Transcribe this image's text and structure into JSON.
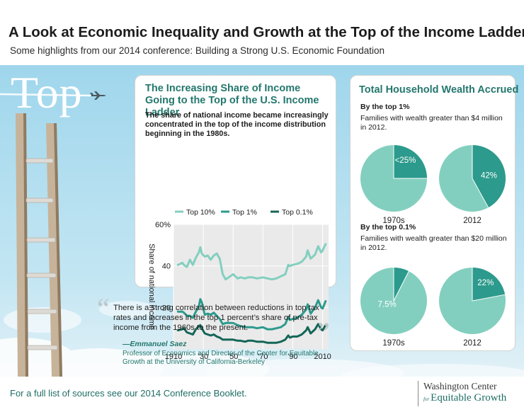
{
  "header": {
    "title": "A Look at Economic Inequality and Growth at the Top of the Income Ladder",
    "subtitle": "Some highlights from our 2014 conference: Building a Strong U.S. Economic Foundation"
  },
  "hero": {
    "word": "Top"
  },
  "colors": {
    "top10": "#83cfbf",
    "top1": "#2c9a8c",
    "top01": "#146658",
    "brand": "#23776d",
    "sky": "#a8daee"
  },
  "icons": [
    "airplane-icon",
    "ladder-illustration"
  ],
  "income_card": {
    "title": "The Increasing Share of Income Going to the Top of the U.S. Income Ladder",
    "subtitle": "The share of national income became increasingly concentrated in the top of the income distribution beginning in the 1980s."
  },
  "chart_data": [
    {
      "type": "line",
      "title": "The Increasing Share of Income Going to the Top of the U.S. Income Ladder",
      "ylabel": "Share of national income",
      "xlabel": "",
      "xlim": [
        1910,
        2014
      ],
      "ylim": [
        0,
        60
      ],
      "xticks": [
        "1910",
        "'30",
        "'50",
        "'70",
        "'90",
        "2010"
      ],
      "yticks": [
        "20",
        "40",
        "60%"
      ],
      "grid": true,
      "legend_position": "top",
      "x": [
        1913,
        1916,
        1917,
        1919,
        1921,
        1923,
        1925,
        1927,
        1928,
        1929,
        1931,
        1933,
        1935,
        1937,
        1939,
        1941,
        1943,
        1945,
        1947,
        1950,
        1953,
        1955,
        1958,
        1960,
        1963,
        1966,
        1970,
        1973,
        1976,
        1979,
        1982,
        1985,
        1987,
        1988,
        1990,
        1993,
        1996,
        1999,
        2000,
        2002,
        2005,
        2007,
        2009,
        2010,
        2012
      ],
      "series": [
        {
          "name": "Top 10%",
          "values": [
            40.5,
            41.5,
            40.5,
            39.5,
            43,
            40.5,
            44,
            46.5,
            49,
            46,
            44.5,
            45,
            43,
            45,
            46,
            43.5,
            36,
            33.5,
            34.5,
            36,
            34,
            34.5,
            34,
            34.5,
            34.5,
            34,
            34.5,
            34,
            33.5,
            34,
            35,
            36,
            40.5,
            40,
            40.5,
            41,
            42,
            44.5,
            47.5,
            43.5,
            45.5,
            49.5,
            46.5,
            47.5,
            50.5
          ]
        },
        {
          "name": "Top 1%",
          "values": [
            18,
            18,
            17.5,
            16,
            16,
            15,
            18,
            20.5,
            24,
            22.5,
            16.5,
            17,
            16.5,
            17.5,
            16,
            14.5,
            12,
            12.5,
            12.5,
            12.5,
            11.5,
            11,
            10.5,
            10.5,
            10.5,
            10,
            10.5,
            9.5,
            9.5,
            10,
            10.5,
            12,
            15.5,
            14,
            14.5,
            15,
            16.5,
            19,
            21.5,
            17,
            20,
            23.5,
            20,
            19.5,
            23
          ]
        },
        {
          "name": "Top 0.1%",
          "values": [
            9,
            9.5,
            10,
            8,
            7.5,
            7,
            9.5,
            11,
            11.5,
            10,
            7.5,
            7,
            6.5,
            7,
            6,
            5.5,
            4.5,
            4.5,
            4.5,
            4.5,
            4,
            4,
            3.5,
            4,
            4,
            3.5,
            3.5,
            3,
            3,
            3,
            3.5,
            4.5,
            6.5,
            5.5,
            6,
            6,
            7,
            9,
            10.5,
            7.5,
            9.5,
            12,
            9.5,
            9,
            11.5
          ]
        }
      ]
    },
    {
      "type": "pie",
      "group": "By the top 1%",
      "description": "Families with wealth greater than $4 million in 2012.",
      "label": "1970s",
      "value_label": "<25%",
      "share": 25,
      "colors": {
        "share": "#2c9a8c",
        "rest": "#83cfbf"
      }
    },
    {
      "type": "pie",
      "group": "By the top 1%",
      "description": "Families with wealth greater than $4 million in 2012.",
      "label": "2012",
      "value_label": "42%",
      "share": 42,
      "colors": {
        "share": "#2c9a8c",
        "rest": "#83cfbf"
      }
    },
    {
      "type": "pie",
      "group": "By the top 0.1%",
      "description": "Families with wealth greater than $20 million in 2012.",
      "label": "1970s",
      "value_label": "7.5%",
      "share": 7.5,
      "colors": {
        "share": "#2c9a8c",
        "rest": "#83cfbf"
      }
    },
    {
      "type": "pie",
      "group": "By the top 0.1%",
      "description": "Families with wealth greater than $20 million in 2012.",
      "label": "2012",
      "value_label": "22%",
      "share": 22,
      "colors": {
        "share": "#2c9a8c",
        "rest": "#83cfbf"
      }
    }
  ],
  "wealth_card": {
    "title": "Total Household Wealth Accrued",
    "top1_label": "By the top 1%",
    "top1_desc": "Families with wealth greater than $4 million in 2012.",
    "top01_label": "By the top 0.1%",
    "top01_desc": "Families with wealth greater than $20 million in 2012."
  },
  "quote": {
    "text": "There is a strong correlation between reductions in top tax rates and increases in the top 1 percent’s share of pre-tax income from the 1960s to the present.",
    "author": "—Emmanuel Saez",
    "role": "Professor of Economics and Director of the Center for Equitable Growth at the University of California-Berkeley"
  },
  "footer": {
    "text": "For a full list of sources see our 2014 Conference Booklet.",
    "logo_line1": "Washington Center",
    "logo_for": "for",
    "logo_line2": "Equitable Growth"
  }
}
